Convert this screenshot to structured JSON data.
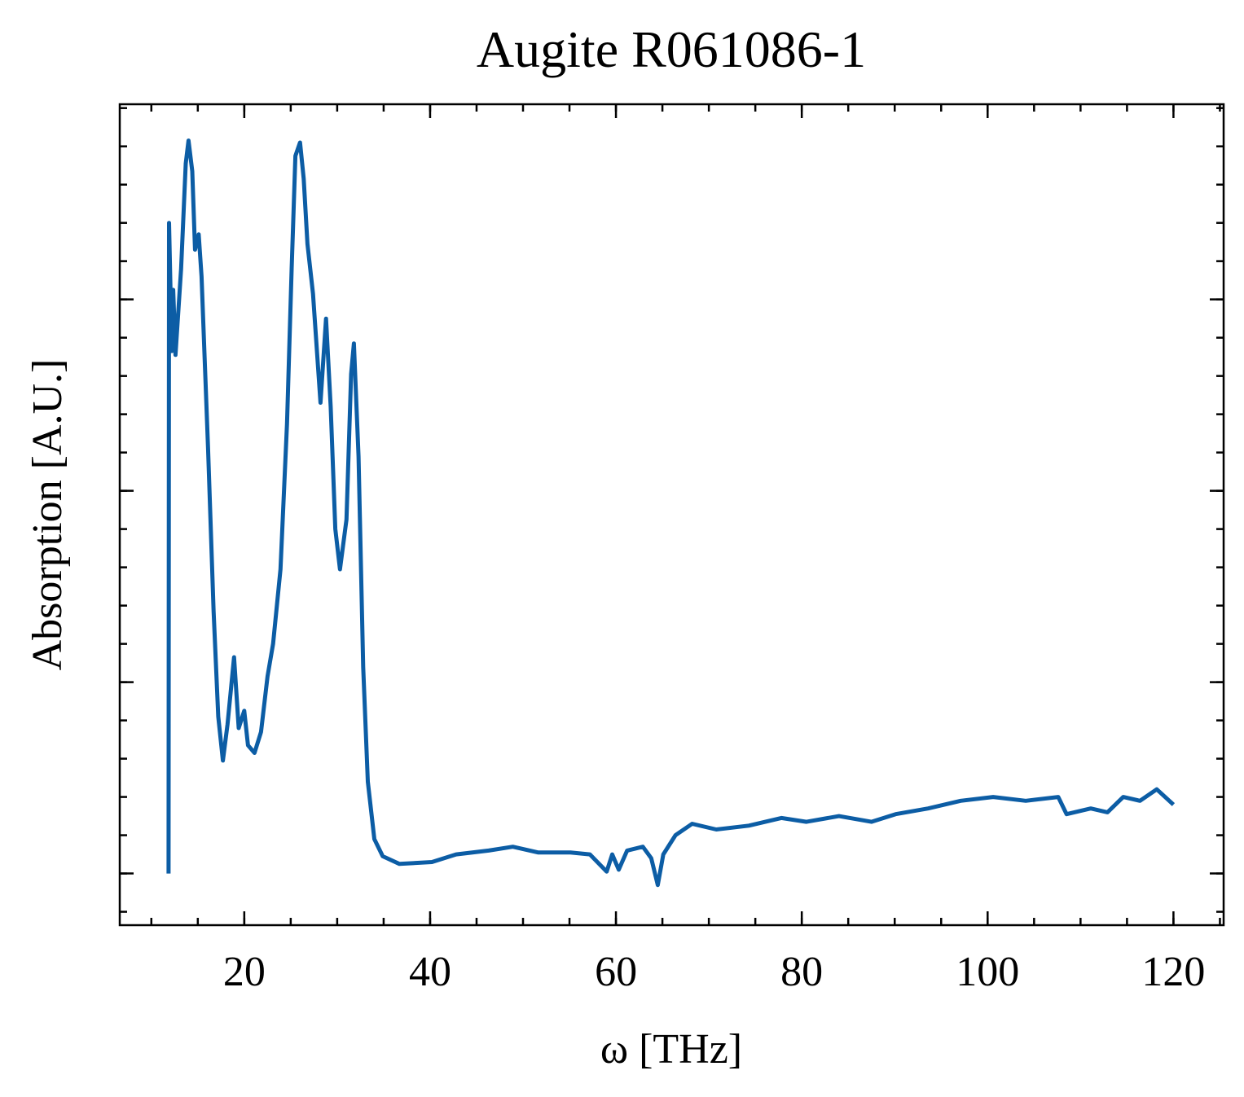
{
  "chart_data": {
    "type": "line",
    "title": "Augite R061086-1",
    "x_label": "ω [THz]",
    "y_label": "Absorption [A.U.]",
    "xlim": [
      6.6,
      125.4
    ],
    "xticks": [
      20,
      40,
      60,
      80,
      100,
      120
    ],
    "ylim": [
      -0.27,
      4.02
    ],
    "yticks": [
      0,
      1,
      2,
      3
    ],
    "series": [
      {
        "color": "#0c5da5",
        "x": [
          11.85,
          11.9,
          12.2,
          12.35,
          12.6,
          13.2,
          13.7,
          14.0,
          14.4,
          14.7,
          15.1,
          15.4,
          16.1,
          16.7,
          17.2,
          17.7,
          18.2,
          18.9,
          19.4,
          20.0,
          20.4,
          21.1,
          21.8,
          22.5,
          23.1,
          23.9,
          24.6,
          25.1,
          25.5,
          26.0,
          26.4,
          26.8,
          27.4,
          28.2,
          28.8,
          29.3,
          29.8,
          30.3,
          31.0,
          31.5,
          31.8,
          32.3,
          32.8,
          33.3,
          34.0,
          34.9,
          36.7,
          40.2,
          42.8,
          46.3,
          48.9,
          51.6,
          55.1,
          57.2,
          59.0,
          59.6,
          60.3,
          61.2,
          62.9,
          63.8,
          64.5,
          65.1,
          66.4,
          68.2,
          70.8,
          74.3,
          77.8,
          80.5,
          84.0,
          87.5,
          90.1,
          93.6,
          97.1,
          100.6,
          104.1,
          107.6,
          108.5,
          111.1,
          112.9,
          114.6,
          116.4,
          118.2,
          120.0
        ],
        "values": [
          0,
          3.4,
          2.73,
          3.05,
          2.71,
          3.16,
          3.71,
          3.83,
          3.67,
          3.26,
          3.34,
          3.12,
          2.22,
          1.37,
          0.82,
          0.59,
          0.78,
          1.13,
          0.76,
          0.85,
          0.67,
          0.63,
          0.74,
          1.03,
          1.2,
          1.59,
          2.35,
          3.16,
          3.75,
          3.82,
          3.63,
          3.29,
          3.03,
          2.46,
          2.9,
          2.44,
          1.8,
          1.59,
          1.85,
          2.61,
          2.77,
          2.18,
          1.08,
          0.48,
          0.18,
          0.09,
          0.05,
          0.06,
          0.1,
          0.12,
          0.14,
          0.11,
          0.11,
          0.1,
          0.01,
          0.1,
          0.02,
          0.12,
          0.14,
          0.08,
          -0.06,
          0.1,
          0.2,
          0.26,
          0.23,
          0.25,
          0.29,
          0.27,
          0.3,
          0.27,
          0.31,
          0.34,
          0.38,
          0.4,
          0.38,
          0.4,
          0.31,
          0.34,
          0.32,
          0.4,
          0.38,
          0.44,
          0.36
        ]
      }
    ]
  }
}
